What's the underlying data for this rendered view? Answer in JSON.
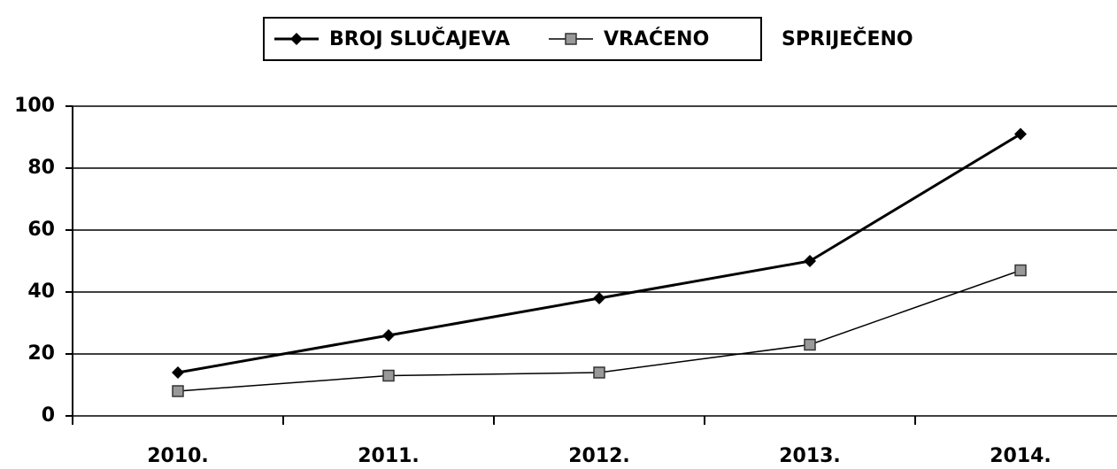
{
  "chart_data": {
    "type": "line",
    "categories": [
      "2010.",
      "2011.",
      "2012.",
      "2013.",
      "2014."
    ],
    "series": [
      {
        "name": "BROJ SLUČAJEVA",
        "color": "#000000",
        "marker": "diamond",
        "values": [
          14,
          26,
          38,
          50,
          91
        ]
      },
      {
        "name": "VRAĆENO",
        "color": "#000000",
        "marker": "square",
        "values": [
          8,
          13,
          14,
          23,
          47
        ]
      },
      {
        "name": "SPRIJEČENO",
        "color": "#ffffff",
        "marker": "none",
        "values": [
          null,
          null,
          null,
          null,
          null
        ]
      }
    ],
    "ylim": [
      0,
      100
    ],
    "yticks": [
      0,
      20,
      40,
      60,
      80,
      100
    ],
    "grid": true,
    "legend": "top"
  }
}
